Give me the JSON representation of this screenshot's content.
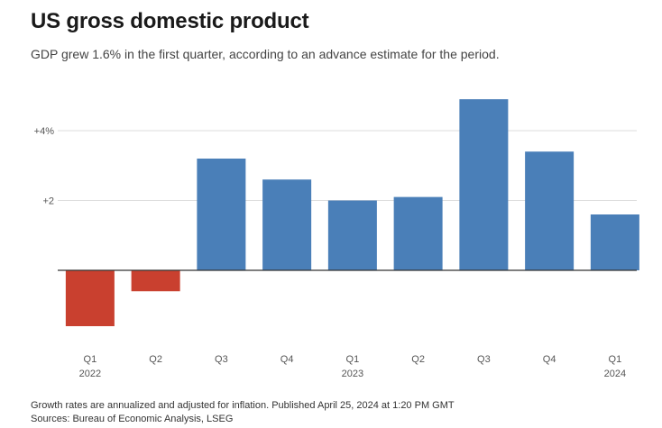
{
  "title": "US gross domestic product",
  "subtitle": "GDP grew 1.6% in the first quarter, according to an advance estimate for the period.",
  "footer": {
    "note": "Growth rates are annualized and adjusted for inflation. Published April 25, 2024 at 1:20 PM GMT",
    "source": "Sources: Bureau of Economic Analysis, LSEG"
  },
  "colors": {
    "positive": "#4a7fb8",
    "negative": "#c9402f",
    "grid": "#dddddd",
    "axis": "#333333"
  },
  "chart_data": {
    "type": "bar",
    "categories": [
      "Q1",
      "Q2",
      "Q3",
      "Q4",
      "Q1",
      "Q2",
      "Q3",
      "Q4",
      "Q1"
    ],
    "year_labels": [
      "2022",
      "",
      "",
      "",
      "2023",
      "",
      "",
      "",
      "2024"
    ],
    "values": [
      -1.6,
      -0.6,
      3.2,
      2.6,
      2.0,
      2.1,
      4.9,
      3.4,
      1.6
    ],
    "yticks": [
      {
        "value": 4,
        "label": "+4%"
      },
      {
        "value": 2,
        "label": "+2"
      }
    ],
    "ylim": [
      -2.3,
      5.0
    ],
    "grid": true
  }
}
